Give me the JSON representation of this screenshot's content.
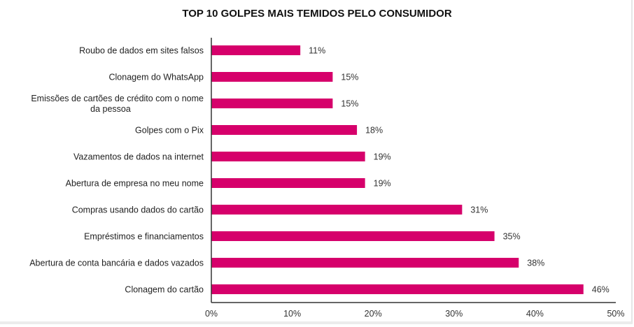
{
  "chart_data": {
    "type": "bar",
    "orientation": "horizontal",
    "title": "TOP 10 GOLPES MAIS TEMIDOS PELO CONSUMIDOR",
    "xlabel": "",
    "ylabel": "",
    "xlim": [
      0,
      50
    ],
    "x_ticks": [
      "0%",
      "10%",
      "20%",
      "30%",
      "40%",
      "50%"
    ],
    "x_tick_values": [
      0,
      10,
      20,
      30,
      40,
      50
    ],
    "grid": false,
    "bar_color": "#d6006b",
    "categories": [
      [
        "Roubo de dados em sites falsos"
      ],
      [
        "Clonagem do WhatsApp"
      ],
      [
        "Emissões de cartões de crédito com o nome",
        "da pessoa"
      ],
      [
        "Golpes com o Pix"
      ],
      [
        "Vazamentos de dados na internet"
      ],
      [
        "Abertura de empresa no meu nome"
      ],
      [
        "Compras usando dados do cartão"
      ],
      [
        "Empréstimos e financiamentos"
      ],
      [
        "Abertura de conta bancária e dados vazados"
      ],
      [
        "Clonagem do cartão"
      ]
    ],
    "values": [
      11,
      15,
      15,
      18,
      19,
      19,
      31,
      35,
      38,
      46
    ],
    "value_labels": [
      "11%",
      "15%",
      "15%",
      "18%",
      "19%",
      "19%",
      "31%",
      "35%",
      "38%",
      "46%"
    ]
  }
}
